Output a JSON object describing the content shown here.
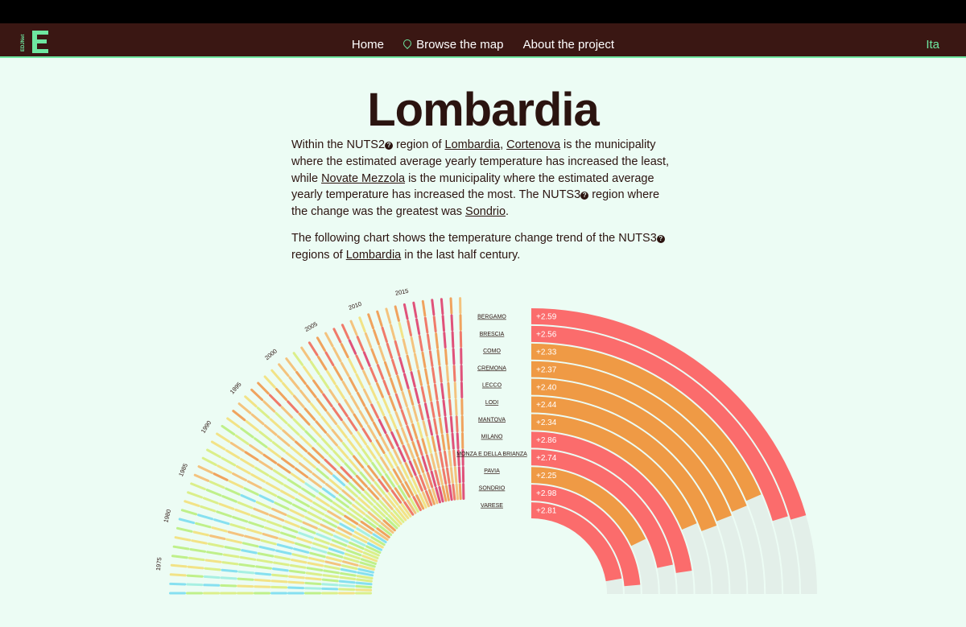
{
  "nav": {
    "logo_text": "EDJNet",
    "items": [
      {
        "label": "Home"
      },
      {
        "label": "Browse the map"
      },
      {
        "label": "About the project"
      }
    ],
    "lang": "Ita"
  },
  "page": {
    "title": "Lombardia",
    "p1": {
      "t1": "Within the NUTS2",
      "t2": " region of ",
      "region": "Lombardia",
      "t3": ", ",
      "least": "Cortenova",
      "t4": " is the municipality where the estimated average yearly temperature has increased the least, while ",
      "most": "Novate Mezzola",
      "t5": " is the municipality where the estimated average yearly temperature has increased the most. The NUTS3",
      "t6": " region where the change was the greatest was ",
      "greatest": "Sondrio",
      "t7": "."
    },
    "p2": {
      "t1": "The following chart shows the temperature change trend of the NUTS3",
      "t2": " regions of ",
      "region": "Lombardia",
      "t3": " in the last half century."
    },
    "help_glyph": "?"
  },
  "colors": {
    "red": "#fb6c6c",
    "orange": "#ef9a45",
    "track": "#e3efe9",
    "warm": [
      "#a7f0e2",
      "#86e0f0",
      "#bff08a",
      "#dbef8a",
      "#f2e387",
      "#f4c37e",
      "#f0a35e",
      "#f07a6a",
      "#e0527a"
    ]
  },
  "chart_data": {
    "type": "radial-bar",
    "year_ticks": [
      "1975",
      "1980",
      "1985",
      "1990",
      "1995",
      "2000",
      "2005",
      "2010",
      "2015"
    ],
    "years_range": [
      1972,
      2021
    ],
    "regions": [
      {
        "name": "BERGAMO",
        "change": 2.59,
        "label": "+2.59",
        "color": "red"
      },
      {
        "name": "BRESCIA",
        "change": 2.56,
        "label": "+2.56",
        "color": "red"
      },
      {
        "name": "COMO",
        "change": 2.33,
        "label": "+2.33",
        "color": "orange"
      },
      {
        "name": "CREMONA",
        "change": 2.37,
        "label": "+2.37",
        "color": "orange"
      },
      {
        "name": "LECCO",
        "change": 2.4,
        "label": "+2.40",
        "color": "orange"
      },
      {
        "name": "LODI",
        "change": 2.44,
        "label": "+2.44",
        "color": "orange"
      },
      {
        "name": "MANTOVA",
        "change": 2.34,
        "label": "+2.34",
        "color": "orange"
      },
      {
        "name": "MILANO",
        "change": 2.86,
        "label": "+2.86",
        "color": "red"
      },
      {
        "name": "MONZA E DELLA BRIANZA",
        "change": 2.74,
        "label": "+2.74",
        "color": "red"
      },
      {
        "name": "PAVIA",
        "change": 2.25,
        "label": "+2.25",
        "color": "orange"
      },
      {
        "name": "SONDRIO",
        "change": 2.98,
        "label": "+2.98",
        "color": "red"
      },
      {
        "name": "VARESE",
        "change": 2.81,
        "label": "+2.81",
        "color": "red"
      }
    ]
  }
}
